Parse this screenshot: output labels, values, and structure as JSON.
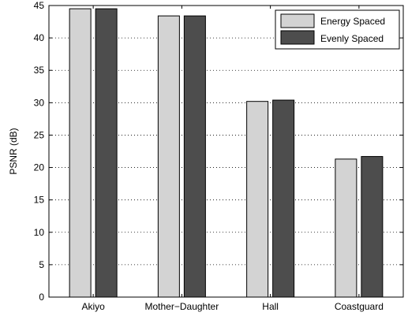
{
  "chart_data": {
    "type": "bar",
    "categories": [
      "Akiyo",
      "Mother−Daughter",
      "Hall",
      "Coastguard"
    ],
    "series": [
      {
        "name": "Energy Spaced",
        "values": [
          44.5,
          43.4,
          30.2,
          21.3
        ],
        "color": "#d3d3d3"
      },
      {
        "name": "Evenly Spaced",
        "values": [
          44.5,
          43.4,
          30.4,
          21.7
        ],
        "color": "#4d4d4d"
      }
    ],
    "title": "",
    "xlabel": "",
    "ylabel": "PSNR (dB)",
    "ylim": [
      0,
      45
    ],
    "yticks": [
      "0",
      "5",
      "10",
      "15",
      "20",
      "25",
      "30",
      "35",
      "40",
      "45"
    ],
    "grid": "y-dotted",
    "legend_position": "top-right"
  }
}
